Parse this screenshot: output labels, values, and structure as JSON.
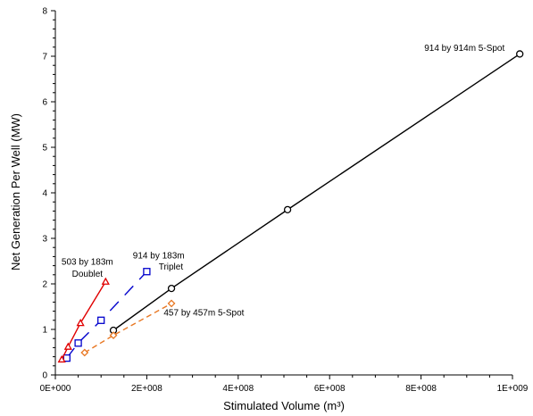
{
  "chart_data": {
    "type": "scatter",
    "title": "",
    "xlabel": "Stimulated Volume (m³)",
    "ylabel": "Net Generation Per Well (MW)",
    "xlim": [
      0,
      1000000000
    ],
    "ylim": [
      0,
      8
    ],
    "x_ticks": [
      0,
      200000000,
      400000000,
      600000000,
      800000000,
      1000000000
    ],
    "x_tick_labels": [
      "0E+000",
      "2E+008",
      "4E+008",
      "6E+008",
      "8E+008",
      "1E+009"
    ],
    "y_ticks": [
      0,
      1,
      2,
      3,
      4,
      5,
      6,
      7,
      8
    ],
    "y_tick_labels": [
      "0",
      "1",
      "2",
      "3",
      "4",
      "5",
      "6",
      "7",
      "8"
    ],
    "grid": false,
    "series": [
      {
        "name": "914 by 914m 5-Spot",
        "color": "#000000",
        "marker": "circle",
        "line": "solid",
        "points": [
          {
            "x": 127000000,
            "y": 0.98
          },
          {
            "x": 254000000,
            "y": 1.9
          },
          {
            "x": 508000000,
            "y": 3.63
          },
          {
            "x": 1016000000,
            "y": 7.05
          }
        ]
      },
      {
        "name": "457 by 457m 5-Spot",
        "color": "#E87722",
        "marker": "diamond",
        "line": "dashed",
        "points": [
          {
            "x": 64000000,
            "y": 0.49
          },
          {
            "x": 127000000,
            "y": 0.87
          },
          {
            "x": 254000000,
            "y": 1.57
          }
        ]
      },
      {
        "name": "914 by 183m Triplet",
        "color": "#0000CC",
        "marker": "square",
        "line": "longdash",
        "points": [
          {
            "x": 25000000,
            "y": 0.37
          },
          {
            "x": 50000000,
            "y": 0.7
          },
          {
            "x": 100000000,
            "y": 1.2
          },
          {
            "x": 200000000,
            "y": 2.27
          }
        ]
      },
      {
        "name": "503 by 183m Doublet",
        "color": "#E00000",
        "marker": "triangle",
        "line": "solid",
        "points": [
          {
            "x": 14000000,
            "y": 0.34
          },
          {
            "x": 28000000,
            "y": 0.62
          },
          {
            "x": 55000000,
            "y": 1.14
          },
          {
            "x": 110000000,
            "y": 2.05
          }
        ]
      }
    ],
    "annotations": [
      {
        "text": "914 by 914m 5-Spot",
        "x": 895000000,
        "y": 7.12,
        "anchor": "middle"
      },
      {
        "text": "914 by 183m",
        "x": 226000000,
        "y": 2.56,
        "anchor": "middle"
      },
      {
        "text": "Triplet",
        "x": 226000000,
        "y": 2.31,
        "anchor": "start",
        "dx": 0
      },
      {
        "text": "503 by 183m",
        "x": 70000000,
        "y": 2.42,
        "anchor": "middle"
      },
      {
        "text": "Doublet",
        "x": 70000000,
        "y": 2.16,
        "anchor": "middle"
      },
      {
        "text": "457 by 457m 5-Spot",
        "x": 325000000,
        "y": 1.3,
        "anchor": "middle"
      }
    ]
  }
}
